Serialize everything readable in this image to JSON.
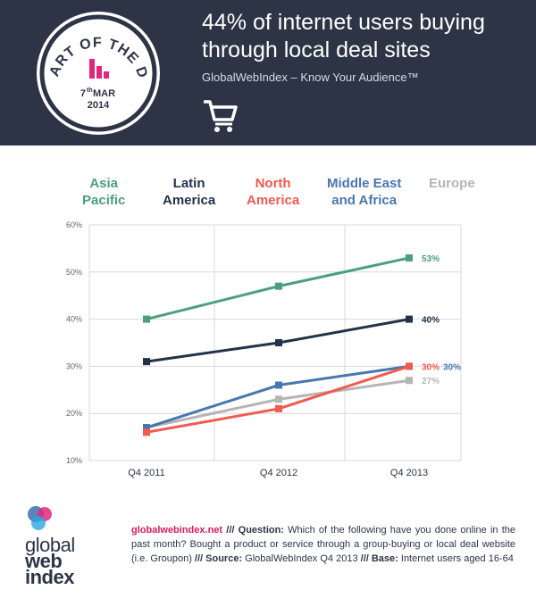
{
  "header": {
    "title_line1": "44% of internet users buying",
    "title_line2": "through local deal sites",
    "subtitle": "GlobalWebIndex – Know Your Audience™",
    "badge": {
      "text": "CHART OF THE DAY",
      "day": "7",
      "day_suffix": "th",
      "month": "MAR",
      "year": "2014"
    }
  },
  "legend": [
    {
      "line1": "Asia",
      "line2": "Pacific",
      "color": "#4aa07a"
    },
    {
      "line1": "Latin",
      "line2": "America",
      "color": "#213249"
    },
    {
      "line1": "North",
      "line2": "America",
      "color": "#f05a4f"
    },
    {
      "line1": "Middle East",
      "line2": "and Africa",
      "color": "#4a76b0"
    },
    {
      "line1": "Europe",
      "line2": "",
      "color": "#b5b5b5"
    }
  ],
  "chart_data": {
    "type": "line",
    "title": "44% of internet users buying through local deal sites",
    "x": [
      "Q4 2011",
      "Q4 2012",
      "Q4 2013"
    ],
    "ylim": [
      10,
      60
    ],
    "yticks": [
      "10%",
      "20%",
      "30%",
      "40%",
      "50%",
      "60%"
    ],
    "grid": true,
    "series": [
      {
        "name": "Asia Pacific",
        "values": [
          40,
          47,
          53
        ],
        "color": "#4aa07a",
        "end_label": "53%"
      },
      {
        "name": "Latin America",
        "values": [
          31,
          35,
          40
        ],
        "color": "#213249",
        "end_label": "40%"
      },
      {
        "name": "North America",
        "values": [
          16,
          21,
          30
        ],
        "color": "#f05a4f",
        "end_label": "30%"
      },
      {
        "name": "Middle East and Africa",
        "values": [
          17,
          26,
          30
        ],
        "color": "#4a76b0",
        "end_label": "30%"
      },
      {
        "name": "Europe",
        "values": [
          17,
          23,
          27
        ],
        "color": "#b5b5b5",
        "end_label": "27%"
      }
    ]
  },
  "footer": {
    "logo_line1": "global",
    "logo_line2": "web",
    "logo_line3": "index",
    "site": "globalwebindex.net",
    "sep1": " /// ",
    "question_label": "Question:",
    "question_text": " Which of the following have you done online in the past month? Bought a product or service through a group-buying or local deal website (i.e. Groupon)",
    "sep2": " /// ",
    "source_label": "Source:",
    "source_text": " GlobalWebIndex Q4 2013",
    "sep3": " /// ",
    "base_label": "Base:",
    "base_text": " Internet users aged 16-64"
  }
}
